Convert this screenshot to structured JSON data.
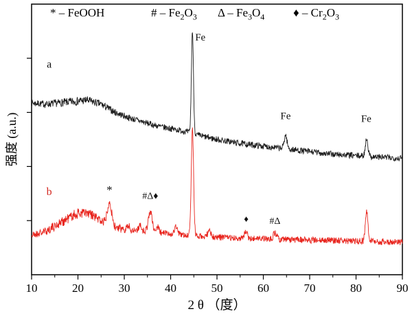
{
  "figure": {
    "background": "#ffffff"
  },
  "legend": {
    "items": [
      {
        "plain": "* – FeOOH",
        "segments": [
          {
            "t": "* – FeOOH",
            "sub": false
          }
        ]
      },
      {
        "plain": "# – Fe2O3",
        "segments": [
          {
            "t": "# – Fe",
            "sub": false
          },
          {
            "t": "2",
            "sub": true
          },
          {
            "t": "O",
            "sub": false
          },
          {
            "t": "3",
            "sub": true
          }
        ]
      },
      {
        "plain": "Δ – Fe3O4",
        "segments": [
          {
            "t": "Δ – Fe",
            "sub": false
          },
          {
            "t": "3",
            "sub": true
          },
          {
            "t": "O",
            "sub": false
          },
          {
            "t": "4",
            "sub": true
          }
        ]
      },
      {
        "plain": "♦ – Cr2O3",
        "segments": [
          {
            "t": "♦ – Cr",
            "sub": false
          },
          {
            "t": "2",
            "sub": true
          },
          {
            "t": "O",
            "sub": false
          },
          {
            "t": "3",
            "sub": true
          }
        ]
      }
    ]
  },
  "chart_data": {
    "type": "line",
    "title": "",
    "xlabel": "2 θ （度）",
    "ylabel": "强度 (a.u.)",
    "xlim": [
      10,
      90
    ],
    "ylim": [
      0,
      100
    ],
    "x_ticks": [
      10,
      20,
      30,
      40,
      50,
      60,
      70,
      80,
      90
    ],
    "x_minor_step": 5,
    "y_ticks": [
      20,
      40,
      60,
      80
    ],
    "grid": false,
    "legend_position": "top-inside",
    "legend_entries": [
      "* – FeOOH",
      "# – Fe2O3",
      "Δ – Fe3O4",
      "♦ – Cr2O3"
    ],
    "series": [
      {
        "name": "a",
        "color": "#1c1c1c",
        "seed": 7,
        "noise": 1.15,
        "noise_bump": {
          "x": 20,
          "sigma": 5,
          "factor": 0.35
        },
        "baseline": [
          [
            10,
            63.5
          ],
          [
            13,
            63
          ],
          [
            16,
            63.5
          ],
          [
            19,
            64
          ],
          [
            22,
            64.5
          ],
          [
            25,
            63
          ],
          [
            28,
            60
          ],
          [
            31,
            58
          ],
          [
            34,
            56.5
          ],
          [
            37,
            55
          ],
          [
            40,
            54
          ],
          [
            43,
            53
          ],
          [
            46,
            51.5
          ],
          [
            50,
            50
          ],
          [
            55,
            48.5
          ],
          [
            60,
            47.5
          ],
          [
            65,
            46.5
          ],
          [
            70,
            45.5
          ],
          [
            75,
            44.5
          ],
          [
            80,
            44
          ],
          [
            85,
            43.5
          ],
          [
            90,
            43
          ]
        ],
        "peaks": [
          {
            "x": 44.7,
            "height": 38,
            "sigma": 0.22,
            "label": "Fe"
          },
          {
            "x": 64.8,
            "height": 5,
            "sigma": 0.3,
            "label": "Fe"
          },
          {
            "x": 82.3,
            "height": 6.5,
            "sigma": 0.28,
            "label": "Fe"
          }
        ]
      },
      {
        "name": "b",
        "color": "#e8241d",
        "seed": 21,
        "noise": 1.2,
        "noise_bump": {
          "x": 21,
          "sigma": 6,
          "factor": 0.7
        },
        "baseline": [
          [
            10,
            14.5
          ],
          [
            13,
            16
          ],
          [
            16,
            19
          ],
          [
            19,
            22
          ],
          [
            21,
            23
          ],
          [
            23,
            22
          ],
          [
            25,
            20
          ],
          [
            27,
            18
          ],
          [
            29,
            17
          ],
          [
            32,
            16.5
          ],
          [
            35,
            16
          ],
          [
            38,
            15.5
          ],
          [
            41,
            15
          ],
          [
            44,
            14.5
          ],
          [
            48,
            14
          ],
          [
            52,
            13.8
          ],
          [
            56,
            13.5
          ],
          [
            60,
            13.3
          ],
          [
            65,
            13
          ],
          [
            70,
            12.8
          ],
          [
            75,
            12.6
          ],
          [
            80,
            12.4
          ],
          [
            85,
            12.2
          ],
          [
            90,
            12
          ]
        ],
        "peaks": [
          {
            "x": 26.8,
            "height": 9,
            "sigma": 0.45,
            "label": "*"
          },
          {
            "x": 30.8,
            "height": 1.5,
            "sigma": 0.3,
            "label": ""
          },
          {
            "x": 33.4,
            "height": 2.2,
            "sigma": 0.3,
            "label": ""
          },
          {
            "x": 35.6,
            "height": 7.5,
            "sigma": 0.4,
            "label": "#Δ♦"
          },
          {
            "x": 37.2,
            "height": 2,
            "sigma": 0.3,
            "label": ""
          },
          {
            "x": 41.2,
            "height": 3,
            "sigma": 0.3,
            "label": ""
          },
          {
            "x": 44.7,
            "height": 40,
            "sigma": 0.25,
            "label": ""
          },
          {
            "x": 48.3,
            "height": 2.5,
            "sigma": 0.3,
            "label": ""
          },
          {
            "x": 56.2,
            "height": 2,
            "sigma": 0.35,
            "label": "♦"
          },
          {
            "x": 62.5,
            "height": 2.2,
            "sigma": 0.35,
            "label": "#Δ"
          },
          {
            "x": 82.3,
            "height": 11,
            "sigma": 0.28,
            "label": ""
          }
        ]
      }
    ],
    "annotations": [
      {
        "text": "Fe",
        "x": 46.4,
        "y": 86.5,
        "color": "#111111",
        "size": 15
      },
      {
        "text": "Fe",
        "x": 64.8,
        "y": 57.5,
        "color": "#111111",
        "size": 15
      },
      {
        "text": "Fe",
        "x": 82.2,
        "y": 56.5,
        "color": "#111111",
        "size": 15
      },
      {
        "text": "a",
        "x": 13.8,
        "y": 76.5,
        "color": "#111111",
        "size": 16
      },
      {
        "text": "b",
        "x": 13.8,
        "y": 29.5,
        "color": "#d42a22",
        "size": 16
      },
      {
        "text": "*",
        "x": 26.8,
        "y": 30.0,
        "color": "#111111",
        "size": 17
      },
      {
        "text": "#Δ♦",
        "x": 35.6,
        "y": 28.0,
        "color": "#111111",
        "size": 14
      },
      {
        "text": "♦",
        "x": 56.3,
        "y": 19.5,
        "color": "#111111",
        "size": 13
      },
      {
        "text": "#Δ",
        "x": 62.5,
        "y": 18.8,
        "color": "#111111",
        "size": 14
      }
    ]
  }
}
